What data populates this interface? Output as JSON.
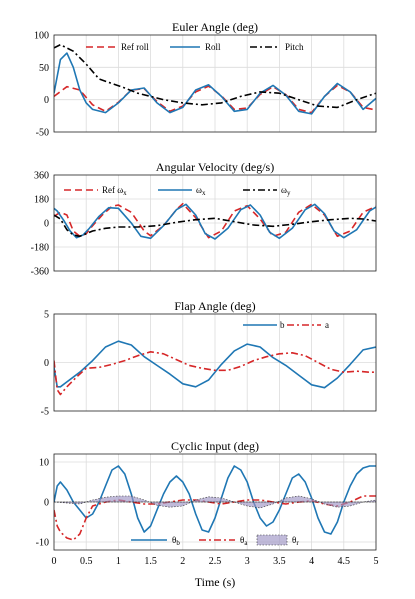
{
  "chart_data": [
    {
      "type": "line",
      "title": "Euler Angle (deg)",
      "xlim": [
        0,
        5
      ],
      "ylim": [
        -50,
        100
      ],
      "xticks": [
        "0",
        "0.5",
        "1",
        "1.5",
        "2",
        "2.5",
        "3",
        "3.5",
        "4",
        "4.5",
        "5"
      ],
      "yticks": [
        "-50",
        "0",
        "50",
        "100"
      ],
      "grid": true,
      "legend_position": "top-center",
      "series": [
        {
          "name": "Ref roll",
          "color": "#d62728",
          "style": "dashed",
          "x": [
            0,
            0.2,
            0.4,
            0.6,
            0.8,
            1.0,
            1.2,
            1.4,
            1.6,
            1.8,
            2.0,
            2.2,
            2.4,
            2.6,
            2.8,
            3.0,
            3.2,
            3.4,
            3.6,
            3.8,
            4.0,
            4.2,
            4.4,
            4.6,
            4.8,
            5.0
          ],
          "y": [
            5,
            20,
            15,
            -8,
            -18,
            -4,
            15,
            17,
            -3,
            -18,
            -10,
            12,
            21,
            6,
            -15,
            -13,
            8,
            20,
            8,
            -15,
            -20,
            5,
            22,
            12,
            -12,
            -16
          ]
        },
        {
          "name": "Roll",
          "color": "#1f77b4",
          "style": "solid",
          "x": [
            0,
            0.1,
            0.2,
            0.3,
            0.4,
            0.5,
            0.6,
            0.8,
            1.0,
            1.2,
            1.4,
            1.6,
            1.8,
            2.0,
            2.2,
            2.4,
            2.6,
            2.8,
            3.0,
            3.2,
            3.4,
            3.6,
            3.8,
            4.0,
            4.2,
            4.4,
            4.6,
            4.8,
            5.0
          ],
          "y": [
            10,
            62,
            72,
            50,
            15,
            -5,
            -15,
            -20,
            -5,
            15,
            18,
            -5,
            -20,
            -12,
            15,
            23,
            5,
            -18,
            -15,
            10,
            22,
            7,
            -18,
            -22,
            5,
            25,
            12,
            -15,
            2
          ]
        },
        {
          "name": "Pitch",
          "color": "#000000",
          "style": "dashdot",
          "x": [
            0,
            0.1,
            0.3,
            0.5,
            0.7,
            0.9,
            1.1,
            1.3,
            1.5,
            1.7,
            2.0,
            2.3,
            2.6,
            2.9,
            3.2,
            3.5,
            3.8,
            4.1,
            4.4,
            4.7,
            5.0
          ],
          "y": [
            80,
            85,
            75,
            55,
            32,
            25,
            18,
            10,
            5,
            0,
            -5,
            -8,
            -5,
            5,
            12,
            10,
            0,
            -10,
            -12,
            0,
            10
          ]
        }
      ]
    },
    {
      "type": "line",
      "title": "Angular Velocity (deg/s)",
      "xlim": [
        0,
        5
      ],
      "ylim": [
        -360,
        360
      ],
      "xticks": [
        "0",
        "0.5",
        "1",
        "1.5",
        "2",
        "2.5",
        "3",
        "3.5",
        "4",
        "4.5",
        "5"
      ],
      "yticks": [
        "-360",
        "-180",
        "0",
        "180",
        "360"
      ],
      "grid": true,
      "legend_position": "top",
      "series": [
        {
          "name": "Ref ωx",
          "color": "#d62728",
          "style": "dashed",
          "x": [
            0,
            0.1,
            0.2,
            0.3,
            0.4,
            0.5,
            0.6,
            0.75,
            0.9,
            1.0,
            1.2,
            1.4,
            1.5,
            1.7,
            1.9,
            2.0,
            2.2,
            2.4,
            2.6,
            2.8,
            3.0,
            3.2,
            3.4,
            3.6,
            3.8,
            4.0,
            4.2,
            4.4,
            4.6,
            4.8,
            5.0
          ],
          "y": [
            50,
            80,
            60,
            -60,
            -100,
            -80,
            -20,
            60,
            125,
            135,
            80,
            -60,
            -95,
            -20,
            100,
            145,
            40,
            -110,
            -60,
            90,
            130,
            30,
            -100,
            -70,
            80,
            140,
            60,
            -100,
            -60,
            80,
            125
          ]
        },
        {
          "name": "ωx",
          "color": "#1f77b4",
          "style": "solid",
          "x": [
            0,
            0.05,
            0.15,
            0.25,
            0.35,
            0.45,
            0.55,
            0.7,
            0.85,
            1.0,
            1.2,
            1.35,
            1.5,
            1.7,
            1.9,
            2.05,
            2.2,
            2.35,
            2.5,
            2.7,
            2.9,
            3.05,
            3.2,
            3.35,
            3.5,
            3.7,
            3.9,
            4.05,
            4.2,
            4.35,
            4.5,
            4.7,
            4.9,
            5.0
          ],
          "y": [
            110,
            90,
            20,
            -60,
            -110,
            -90,
            -40,
            50,
            115,
            110,
            0,
            -100,
            -115,
            -20,
            100,
            140,
            60,
            -80,
            -120,
            -40,
            100,
            135,
            60,
            -70,
            -115,
            -40,
            100,
            140,
            70,
            -60,
            -110,
            -50,
            90,
            120
          ]
        },
        {
          "name": "ωy",
          "color": "#000000",
          "style": "dashdot",
          "x": [
            0,
            0.1,
            0.2,
            0.3,
            0.4,
            0.5,
            0.6,
            0.8,
            1.0,
            1.3,
            1.6,
            1.9,
            2.2,
            2.5,
            2.8,
            3.1,
            3.4,
            3.7,
            4.0,
            4.3,
            4.6,
            4.8,
            5.0
          ],
          "y": [
            60,
            30,
            -50,
            -90,
            -100,
            -80,
            -60,
            -40,
            -30,
            -30,
            -20,
            5,
            25,
            35,
            10,
            -15,
            -25,
            -10,
            10,
            25,
            35,
            30,
            15
          ]
        }
      ]
    },
    {
      "type": "line",
      "title": "Flap Angle (deg)",
      "xlim": [
        0,
        5
      ],
      "ylim": [
        -5,
        5
      ],
      "xticks": [
        "0",
        "0.5",
        "1",
        "1.5",
        "2",
        "2.5",
        "3",
        "3.5",
        "4",
        "4.5",
        "5"
      ],
      "yticks": [
        "-5",
        "0",
        "5"
      ],
      "grid": true,
      "legend_position": "top-right",
      "series": [
        {
          "name": "b",
          "color": "#1f77b4",
          "style": "solid",
          "x": [
            0,
            0.05,
            0.1,
            0.2,
            0.4,
            0.6,
            0.8,
            1.0,
            1.2,
            1.4,
            1.6,
            1.8,
            2.0,
            2.2,
            2.4,
            2.6,
            2.8,
            3.0,
            3.2,
            3.4,
            3.6,
            3.8,
            4.0,
            4.2,
            4.4,
            4.6,
            4.8,
            5.0
          ],
          "y": [
            -0.5,
            -2.5,
            -2.5,
            -2.0,
            -1.0,
            0.2,
            1.6,
            2.2,
            1.8,
            0.6,
            -0.3,
            -1.2,
            -2.2,
            -2.5,
            -1.8,
            -0.2,
            1.2,
            1.9,
            1.6,
            0.5,
            -0.3,
            -1.3,
            -2.3,
            -2.6,
            -1.6,
            -0.2,
            1.3,
            1.6
          ]
        },
        {
          "name": "a",
          "color": "#d62728",
          "style": "dashdot",
          "x": [
            0,
            0.05,
            0.1,
            0.2,
            0.35,
            0.5,
            0.7,
            0.9,
            1.1,
            1.3,
            1.5,
            1.7,
            1.9,
            2.1,
            2.3,
            2.5,
            2.7,
            2.9,
            3.1,
            3.3,
            3.5,
            3.7,
            3.9,
            4.1,
            4.3,
            4.5,
            4.7,
            4.9,
            5.0
          ],
          "y": [
            0.2,
            -2.8,
            -3.3,
            -2.5,
            -1.5,
            -0.6,
            -0.5,
            -0.2,
            0.2,
            0.7,
            1.1,
            0.9,
            0.3,
            -0.3,
            -0.6,
            -0.8,
            -0.8,
            -0.4,
            0.2,
            0.6,
            0.9,
            1.0,
            0.7,
            0.0,
            -0.7,
            -1.0,
            -0.9,
            -1.0,
            -1.0
          ]
        }
      ]
    },
    {
      "type": "line",
      "title": "Cyclic Input (deg)",
      "xlabel": "Time (s)",
      "xlim": [
        0,
        5
      ],
      "ylim": [
        -12,
        12
      ],
      "xticks": [
        "0",
        "0.5",
        "1",
        "1.5",
        "2",
        "2.5",
        "3",
        "3.5",
        "4",
        "4.5",
        "5"
      ],
      "yticks": [
        "-10",
        "0",
        "10"
      ],
      "grid": true,
      "legend_position": "bottom",
      "series": [
        {
          "name": "θb",
          "color": "#1f77b4",
          "style": "solid",
          "x": [
            0,
            0.05,
            0.1,
            0.2,
            0.3,
            0.4,
            0.5,
            0.6,
            0.7,
            0.8,
            0.9,
            1.0,
            1.1,
            1.2,
            1.3,
            1.4,
            1.5,
            1.6,
            1.7,
            1.8,
            1.9,
            2.0,
            2.1,
            2.2,
            2.3,
            2.4,
            2.5,
            2.6,
            2.7,
            2.8,
            2.9,
            3.0,
            3.1,
            3.2,
            3.3,
            3.4,
            3.5,
            3.6,
            3.7,
            3.8,
            3.9,
            4.0,
            4.1,
            4.2,
            4.3,
            4.4,
            4.5,
            4.6,
            4.7,
            4.8,
            4.9,
            5.0
          ],
          "y": [
            0,
            4,
            5,
            3,
            0,
            -2,
            -4,
            -3,
            0,
            4,
            8,
            9,
            7,
            2,
            -4,
            -7.5,
            -6,
            -2,
            2,
            5,
            6.5,
            5,
            2,
            -3,
            -7,
            -7.5,
            -4,
            1,
            6,
            9,
            8,
            5,
            0,
            -4,
            -6,
            -5,
            -2,
            2,
            6,
            7,
            5,
            1,
            -4,
            -7.5,
            -8,
            -5,
            0,
            4,
            7,
            8.5,
            9,
            9
          ]
        },
        {
          "name": "θa",
          "color": "#d62728",
          "style": "dashdot",
          "x": [
            0,
            0.05,
            0.1,
            0.2,
            0.3,
            0.4,
            0.5,
            0.6,
            0.8,
            1.0,
            1.2,
            1.4,
            1.6,
            1.8,
            2.0,
            2.2,
            2.4,
            2.6,
            2.8,
            3.0,
            3.2,
            3.4,
            3.6,
            3.8,
            4.0,
            4.2,
            4.4,
            4.6,
            4.8,
            5.0
          ],
          "y": [
            -2,
            -6,
            -7.5,
            -9,
            -9.5,
            -8,
            -4,
            -1,
            0,
            0.5,
            0,
            -0.5,
            -0.5,
            0,
            0.5,
            0.5,
            0,
            -0.5,
            0,
            0.5,
            0.5,
            0,
            -0.5,
            0,
            0.3,
            -0.5,
            -1,
            0,
            1.5,
            1.5
          ]
        },
        {
          "name": "θr",
          "color": "#9e95c4",
          "style": "filled",
          "x": [
            0,
            0.4,
            0.6,
            0.8,
            1.0,
            1.2,
            1.4,
            1.6,
            1.8,
            2.0,
            2.2,
            2.4,
            2.6,
            2.8,
            3.0,
            3.2,
            3.4,
            3.6,
            3.8,
            4.0,
            4.2,
            4.4,
            4.6,
            4.8,
            5.0
          ],
          "y": [
            0,
            -0.5,
            0.5,
            1.2,
            1.5,
            1.5,
            0.5,
            -0.8,
            -1.3,
            -1.0,
            0.5,
            1.3,
            1.0,
            0,
            -1.0,
            -1.5,
            -0.5,
            1.0,
            1.5,
            0.8,
            -0.5,
            -1.3,
            -1.0,
            0,
            0.5
          ]
        }
      ]
    }
  ]
}
